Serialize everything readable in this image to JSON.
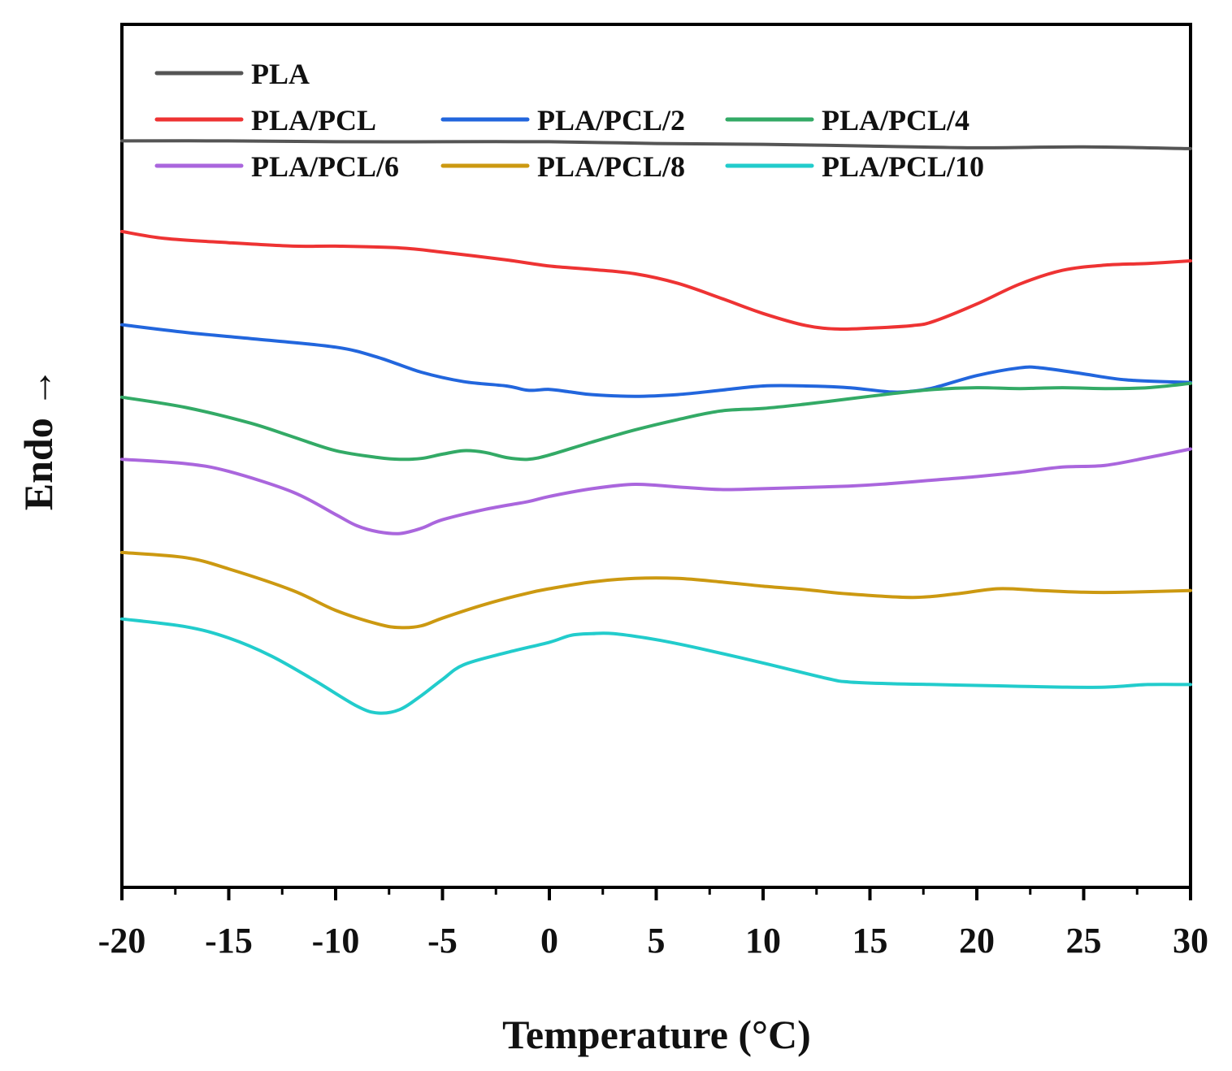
{
  "chart_data": {
    "type": "line",
    "xlabel": "Temperature (°C)",
    "ylabel": "Endo →",
    "xlim": [
      -20,
      30
    ],
    "ylim": [
      0,
      100
    ],
    "xticks": [
      -20,
      -15,
      -10,
      -5,
      0,
      5,
      10,
      15,
      20,
      25,
      30
    ],
    "xtick_labels": [
      "-20",
      "-15",
      "-10",
      "-5",
      "0",
      "5",
      "10",
      "15",
      "20",
      "25",
      "30"
    ],
    "yticks_shown": false,
    "legend_position": "top",
    "series": [
      {
        "name": "PLA",
        "color": "#555555",
        "x": [
          -20,
          -15,
          -10,
          -5,
          0,
          5,
          10,
          15,
          20,
          25,
          30
        ],
        "y": [
          86.5,
          86.5,
          86.4,
          86.4,
          86.4,
          86.2,
          86.1,
          85.9,
          85.7,
          85.8,
          85.6
        ]
      },
      {
        "name": "PLA/PCL",
        "color": "#ee3333",
        "x": [
          -20,
          -18,
          -15,
          -12,
          -10,
          -7,
          -5,
          -2,
          0,
          2,
          4,
          6,
          8,
          10,
          12,
          13.5,
          15,
          17,
          18,
          20,
          22,
          24,
          26,
          28,
          30
        ],
        "y": [
          76,
          75.2,
          74.7,
          74.3,
          74.3,
          74.1,
          73.6,
          72.7,
          72,
          71.6,
          71.1,
          70,
          68.3,
          66.5,
          65.1,
          64.7,
          64.8,
          65.1,
          65.6,
          67.6,
          69.9,
          71.5,
          72.1,
          72.3,
          72.6
        ]
      },
      {
        "name": "PLA/PCL/2",
        "color": "#2266dd",
        "x": [
          -20,
          -17,
          -14,
          -10,
          -8,
          -6,
          -4,
          -2,
          -1,
          0,
          1,
          2,
          4,
          6,
          8,
          10,
          12,
          14,
          16,
          17,
          18,
          20,
          22,
          23,
          25,
          27,
          30
        ],
        "y": [
          65.2,
          64.3,
          63.6,
          62.6,
          61.4,
          59.7,
          58.6,
          58.1,
          57.6,
          57.7,
          57.4,
          57.1,
          56.9,
          57.1,
          57.6,
          58.1,
          58.1,
          57.9,
          57.4,
          57.5,
          57.9,
          59.3,
          60.2,
          60.2,
          59.5,
          58.8,
          58.5
        ]
      },
      {
        "name": "PLA/PCL/4",
        "color": "#33aa66",
        "x": [
          -20,
          -17,
          -14,
          -12,
          -10,
          -8,
          -7,
          -6,
          -5,
          -4,
          -3,
          -2,
          -1,
          0,
          2,
          4,
          6,
          8,
          10,
          12,
          14,
          16,
          18,
          20,
          22,
          24,
          26,
          28,
          30
        ],
        "y": [
          56.8,
          55.6,
          53.8,
          52.2,
          50.6,
          49.8,
          49.6,
          49.7,
          50.2,
          50.6,
          50.4,
          49.8,
          49.6,
          50.1,
          51.6,
          53,
          54.2,
          55.2,
          55.5,
          56,
          56.6,
          57.2,
          57.7,
          57.9,
          57.8,
          57.9,
          57.8,
          57.9,
          58.4
        ]
      },
      {
        "name": "PLA/PCL/6",
        "color": "#aa66dd",
        "x": [
          -20,
          -17,
          -15,
          -12,
          -10,
          -9,
          -8,
          -7,
          -6,
          -5,
          -3,
          -1,
          0,
          2,
          4,
          6,
          8,
          10,
          14,
          16,
          18,
          20,
          22,
          24,
          26,
          28,
          30
        ],
        "y": [
          49.6,
          49.1,
          48.2,
          45.8,
          43.2,
          41.9,
          41.2,
          41,
          41.6,
          42.6,
          43.8,
          44.7,
          45.3,
          46.2,
          46.7,
          46.4,
          46.1,
          46.2,
          46.5,
          46.8,
          47.2,
          47.6,
          48.1,
          48.7,
          48.9,
          49.8,
          50.8
        ]
      },
      {
        "name": "PLA/PCL/8",
        "color": "#cc9911",
        "x": [
          -20,
          -17,
          -15,
          -12,
          -10,
          -8,
          -7,
          -6,
          -5,
          -3,
          -1,
          0,
          2,
          4,
          6,
          8,
          10,
          12,
          14,
          17,
          19,
          21,
          23,
          25,
          27,
          30
        ],
        "y": [
          38.8,
          38.2,
          36.9,
          34.4,
          32.1,
          30.5,
          30.1,
          30.3,
          31.2,
          32.8,
          34.1,
          34.6,
          35.4,
          35.8,
          35.8,
          35.4,
          34.9,
          34.5,
          34,
          33.6,
          34,
          34.6,
          34.4,
          34.2,
          34.2,
          34.4
        ]
      },
      {
        "name": "PLA/PCL/10",
        "color": "#22cccc",
        "x": [
          -20,
          -17,
          -15,
          -13,
          -11,
          -9,
          -8,
          -7,
          -6,
          -5,
          -4,
          -2,
          0,
          1,
          2,
          3,
          5,
          7,
          10,
          13,
          14,
          16,
          18,
          20,
          22,
          24,
          26,
          28,
          30
        ],
        "y": [
          31.1,
          30.2,
          28.9,
          26.8,
          24,
          21,
          20.2,
          20.6,
          22.2,
          24.1,
          25.8,
          27.2,
          28.4,
          29.2,
          29.4,
          29.4,
          28.7,
          27.7,
          26,
          24.2,
          23.8,
          23.6,
          23.5,
          23.4,
          23.3,
          23.2,
          23.2,
          23.5,
          23.5
        ]
      }
    ]
  }
}
